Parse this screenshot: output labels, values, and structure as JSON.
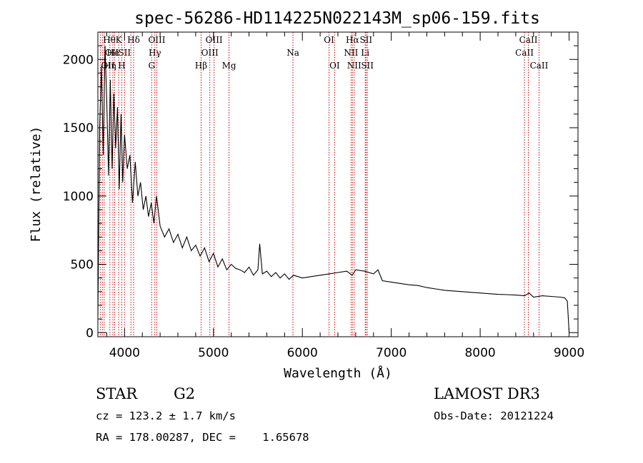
{
  "chart_data": {
    "type": "line",
    "title": "spec-56286-HD114225N022143M_sp06-159.fits",
    "xlabel": "Wavelength (Å)",
    "ylabel": "Flux (relative)",
    "xlim": [
      3700,
      9100
    ],
    "ylim": [
      -30,
      2200
    ],
    "xticks": [
      4000,
      5000,
      6000,
      7000,
      8000,
      9000
    ],
    "yticks": [
      0,
      500,
      1000,
      1500,
      2000
    ],
    "series": [
      {
        "name": "flux",
        "x": [
          3700,
          3720,
          3740,
          3760,
          3780,
          3800,
          3820,
          3840,
          3860,
          3880,
          3900,
          3920,
          3940,
          3960,
          3980,
          4000,
          4030,
          4060,
          4090,
          4120,
          4150,
          4180,
          4210,
          4240,
          4270,
          4300,
          4330,
          4360,
          4400,
          4450,
          4500,
          4550,
          4600,
          4650,
          4700,
          4750,
          4800,
          4850,
          4900,
          4950,
          5000,
          5050,
          5100,
          5150,
          5200,
          5250,
          5300,
          5350,
          5400,
          5450,
          5500,
          5520,
          5550,
          5600,
          5650,
          5700,
          5750,
          5800,
          5850,
          5900,
          5950,
          6000,
          6100,
          6200,
          6300,
          6400,
          6500,
          6560,
          6600,
          6700,
          6800,
          6850,
          6900,
          7000,
          7100,
          7200,
          7300,
          7400,
          7500,
          7600,
          7700,
          7800,
          7900,
          8000,
          8100,
          8200,
          8300,
          8400,
          8500,
          8550,
          8600,
          8700,
          8800,
          8900,
          8950,
          8980,
          9000
        ],
        "values": [
          120,
          1500,
          1950,
          1300,
          2100,
          1700,
          1150,
          1850,
          1200,
          1750,
          1350,
          1650,
          1050,
          1600,
          1100,
          1450,
          1200,
          1300,
          950,
          1250,
          1000,
          1100,
          900,
          1000,
          850,
          950,
          800,
          1000,
          780,
          700,
          760,
          660,
          720,
          620,
          700,
          600,
          640,
          560,
          620,
          520,
          580,
          480,
          540,
          460,
          500,
          470,
          460,
          440,
          480,
          420,
          460,
          650,
          430,
          450,
          410,
          440,
          400,
          430,
          390,
          420,
          410,
          400,
          410,
          420,
          430,
          440,
          450,
          420,
          460,
          450,
          430,
          460,
          380,
          370,
          360,
          350,
          345,
          330,
          320,
          310,
          305,
          300,
          295,
          290,
          285,
          280,
          278,
          275,
          270,
          290,
          260,
          270,
          265,
          260,
          255,
          230,
          0
        ]
      }
    ],
    "lines": [
      {
        "wave": 3727,
        "label": "OII",
        "row": 2,
        "anchor": "start"
      },
      {
        "wave": 3750,
        "label": "Hθ",
        "row": 0,
        "anchor": "start"
      },
      {
        "wave": 3771,
        "label": "OII",
        "row": 1,
        "anchor": "start"
      },
      {
        "wave": 3835,
        "label": "Hη",
        "row": 2,
        "anchor": "middle"
      },
      {
        "wave": 3869,
        "label": "He",
        "row": 1,
        "anchor": "middle"
      },
      {
        "wave": 3889,
        "label": "",
        "row": 0,
        "anchor": "middle"
      },
      {
        "wave": 3934,
        "label": "K",
        "row": 0,
        "anchor": "middle"
      },
      {
        "wave": 3969,
        "label": "H",
        "row": 2,
        "anchor": "middle"
      },
      {
        "wave": 4000,
        "label": "SII",
        "row": 1,
        "anchor": "middle"
      },
      {
        "wave": 4072,
        "label": "",
        "row": 1,
        "anchor": "middle"
      },
      {
        "wave": 4102,
        "label": "Hδ",
        "row": 0,
        "anchor": "middle"
      },
      {
        "wave": 4305,
        "label": "G",
        "row": 2,
        "anchor": "middle"
      },
      {
        "wave": 4341,
        "label": "Hγ",
        "row": 1,
        "anchor": "middle"
      },
      {
        "wave": 4363,
        "label": "OIII",
        "row": 0,
        "anchor": "middle"
      },
      {
        "wave": 4861,
        "label": "Hβ",
        "row": 2,
        "anchor": "middle"
      },
      {
        "wave": 4959,
        "label": "OIII",
        "row": 1,
        "anchor": "middle"
      },
      {
        "wave": 5007,
        "label": "OIII",
        "row": 0,
        "anchor": "middle"
      },
      {
        "wave": 5175,
        "label": "Mg",
        "row": 2,
        "anchor": "middle"
      },
      {
        "wave": 5894,
        "label": "Na",
        "row": 1,
        "anchor": "middle"
      },
      {
        "wave": 6300,
        "label": "OI",
        "row": 0,
        "anchor": "middle"
      },
      {
        "wave": 6363,
        "label": "OI",
        "row": 2,
        "anchor": "middle"
      },
      {
        "wave": 6548,
        "label": "NII",
        "row": 1,
        "anchor": "middle"
      },
      {
        "wave": 6563,
        "label": "Hα",
        "row": 0,
        "anchor": "middle"
      },
      {
        "wave": 6583,
        "label": "NII",
        "row": 2,
        "anchor": "middle"
      },
      {
        "wave": 6707,
        "label": "Li",
        "row": 1,
        "anchor": "middle"
      },
      {
        "wave": 6716,
        "label": "SII",
        "row": 0,
        "anchor": "middle"
      },
      {
        "wave": 6731,
        "label": "SII",
        "row": 2,
        "anchor": "middle"
      },
      {
        "wave": 8498,
        "label": "CaII",
        "row": 1,
        "anchor": "middle"
      },
      {
        "wave": 8542,
        "label": "CaII",
        "row": 0,
        "anchor": "middle"
      },
      {
        "wave": 8662,
        "label": "CaII",
        "row": 2,
        "anchor": "middle"
      }
    ],
    "line_color": "#cc0000"
  },
  "info": {
    "class": "STAR",
    "subclass": "G2",
    "survey": "LAMOST DR3",
    "cz": "cz = 123.2 ± 1.7 km/s",
    "obs_date": "Obs-Date: 20121224",
    "coords": "RA = 178.00287, DEC =    1.65678"
  }
}
